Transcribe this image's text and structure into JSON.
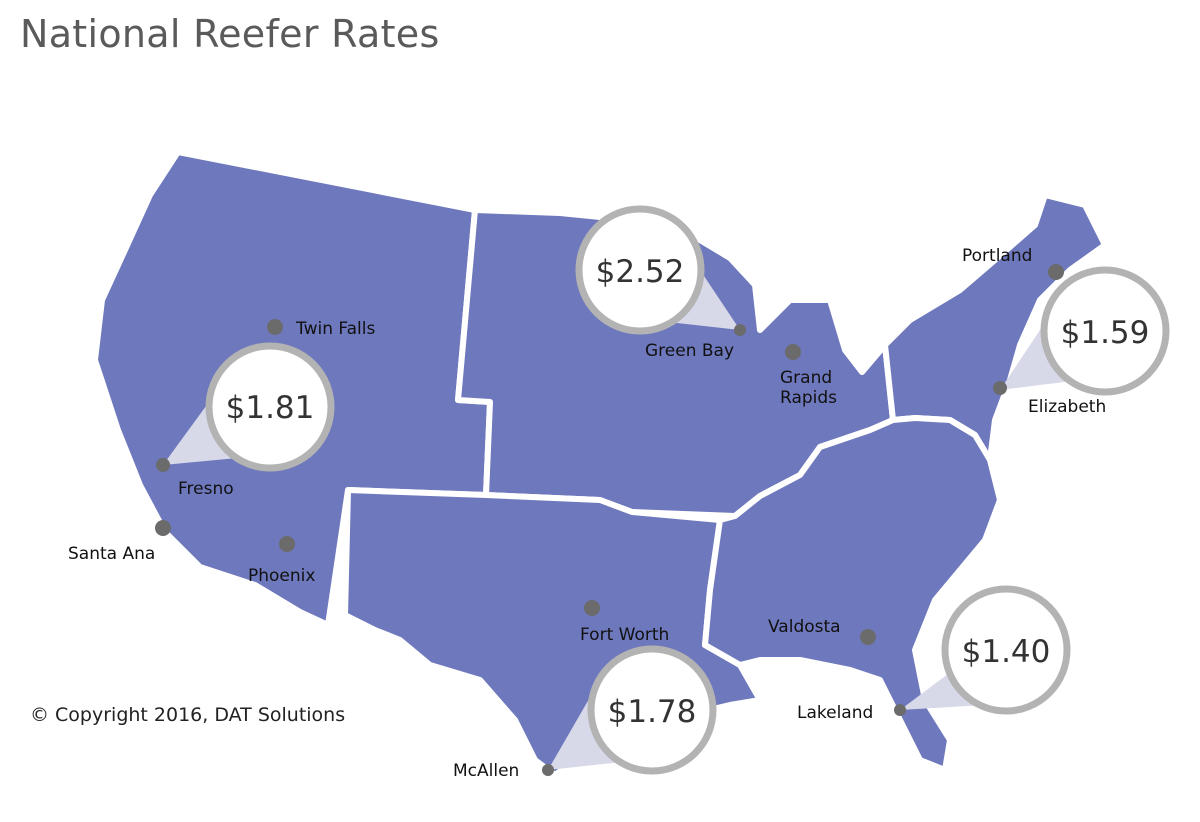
{
  "title": "National Reefer Rates",
  "copyright": "© Copyright 2016, DAT Solutions",
  "colors": {
    "region_fill": "#6e78bd",
    "region_border": "#ffffff",
    "city_dot": "#6b6b6b",
    "bubble_ring": "#b3b3b3",
    "bubble_pointer": "#d7d9e8"
  },
  "cities": [
    {
      "id": "twin-falls",
      "name": "Twin Falls"
    },
    {
      "id": "fresno",
      "name": "Fresno"
    },
    {
      "id": "santa-ana",
      "name": "Santa Ana"
    },
    {
      "id": "phoenix",
      "name": "Phoenix"
    },
    {
      "id": "green-bay",
      "name": "Green Bay"
    },
    {
      "id": "grand-rapids",
      "name": "Grand\nRapids",
      "lines": [
        "Grand",
        "Rapids"
      ]
    },
    {
      "id": "portland",
      "name": "Portland"
    },
    {
      "id": "elizabeth",
      "name": "Elizabeth"
    },
    {
      "id": "fort-worth",
      "name": "Fort Worth"
    },
    {
      "id": "mcallen",
      "name": "McAllen"
    },
    {
      "id": "valdosta",
      "name": "Valdosta"
    },
    {
      "id": "lakeland",
      "name": "Lakeland"
    }
  ],
  "rates": [
    {
      "id": "west",
      "city": "Fresno",
      "rate": "$1.81"
    },
    {
      "id": "midwest",
      "city": "Green Bay",
      "rate": "$2.52"
    },
    {
      "id": "northeast",
      "city": "Elizabeth",
      "rate": "$1.59"
    },
    {
      "id": "south-central",
      "city": "McAllen",
      "rate": "$1.78"
    },
    {
      "id": "southeast",
      "city": "Lakeland",
      "rate": "$1.40"
    }
  ]
}
